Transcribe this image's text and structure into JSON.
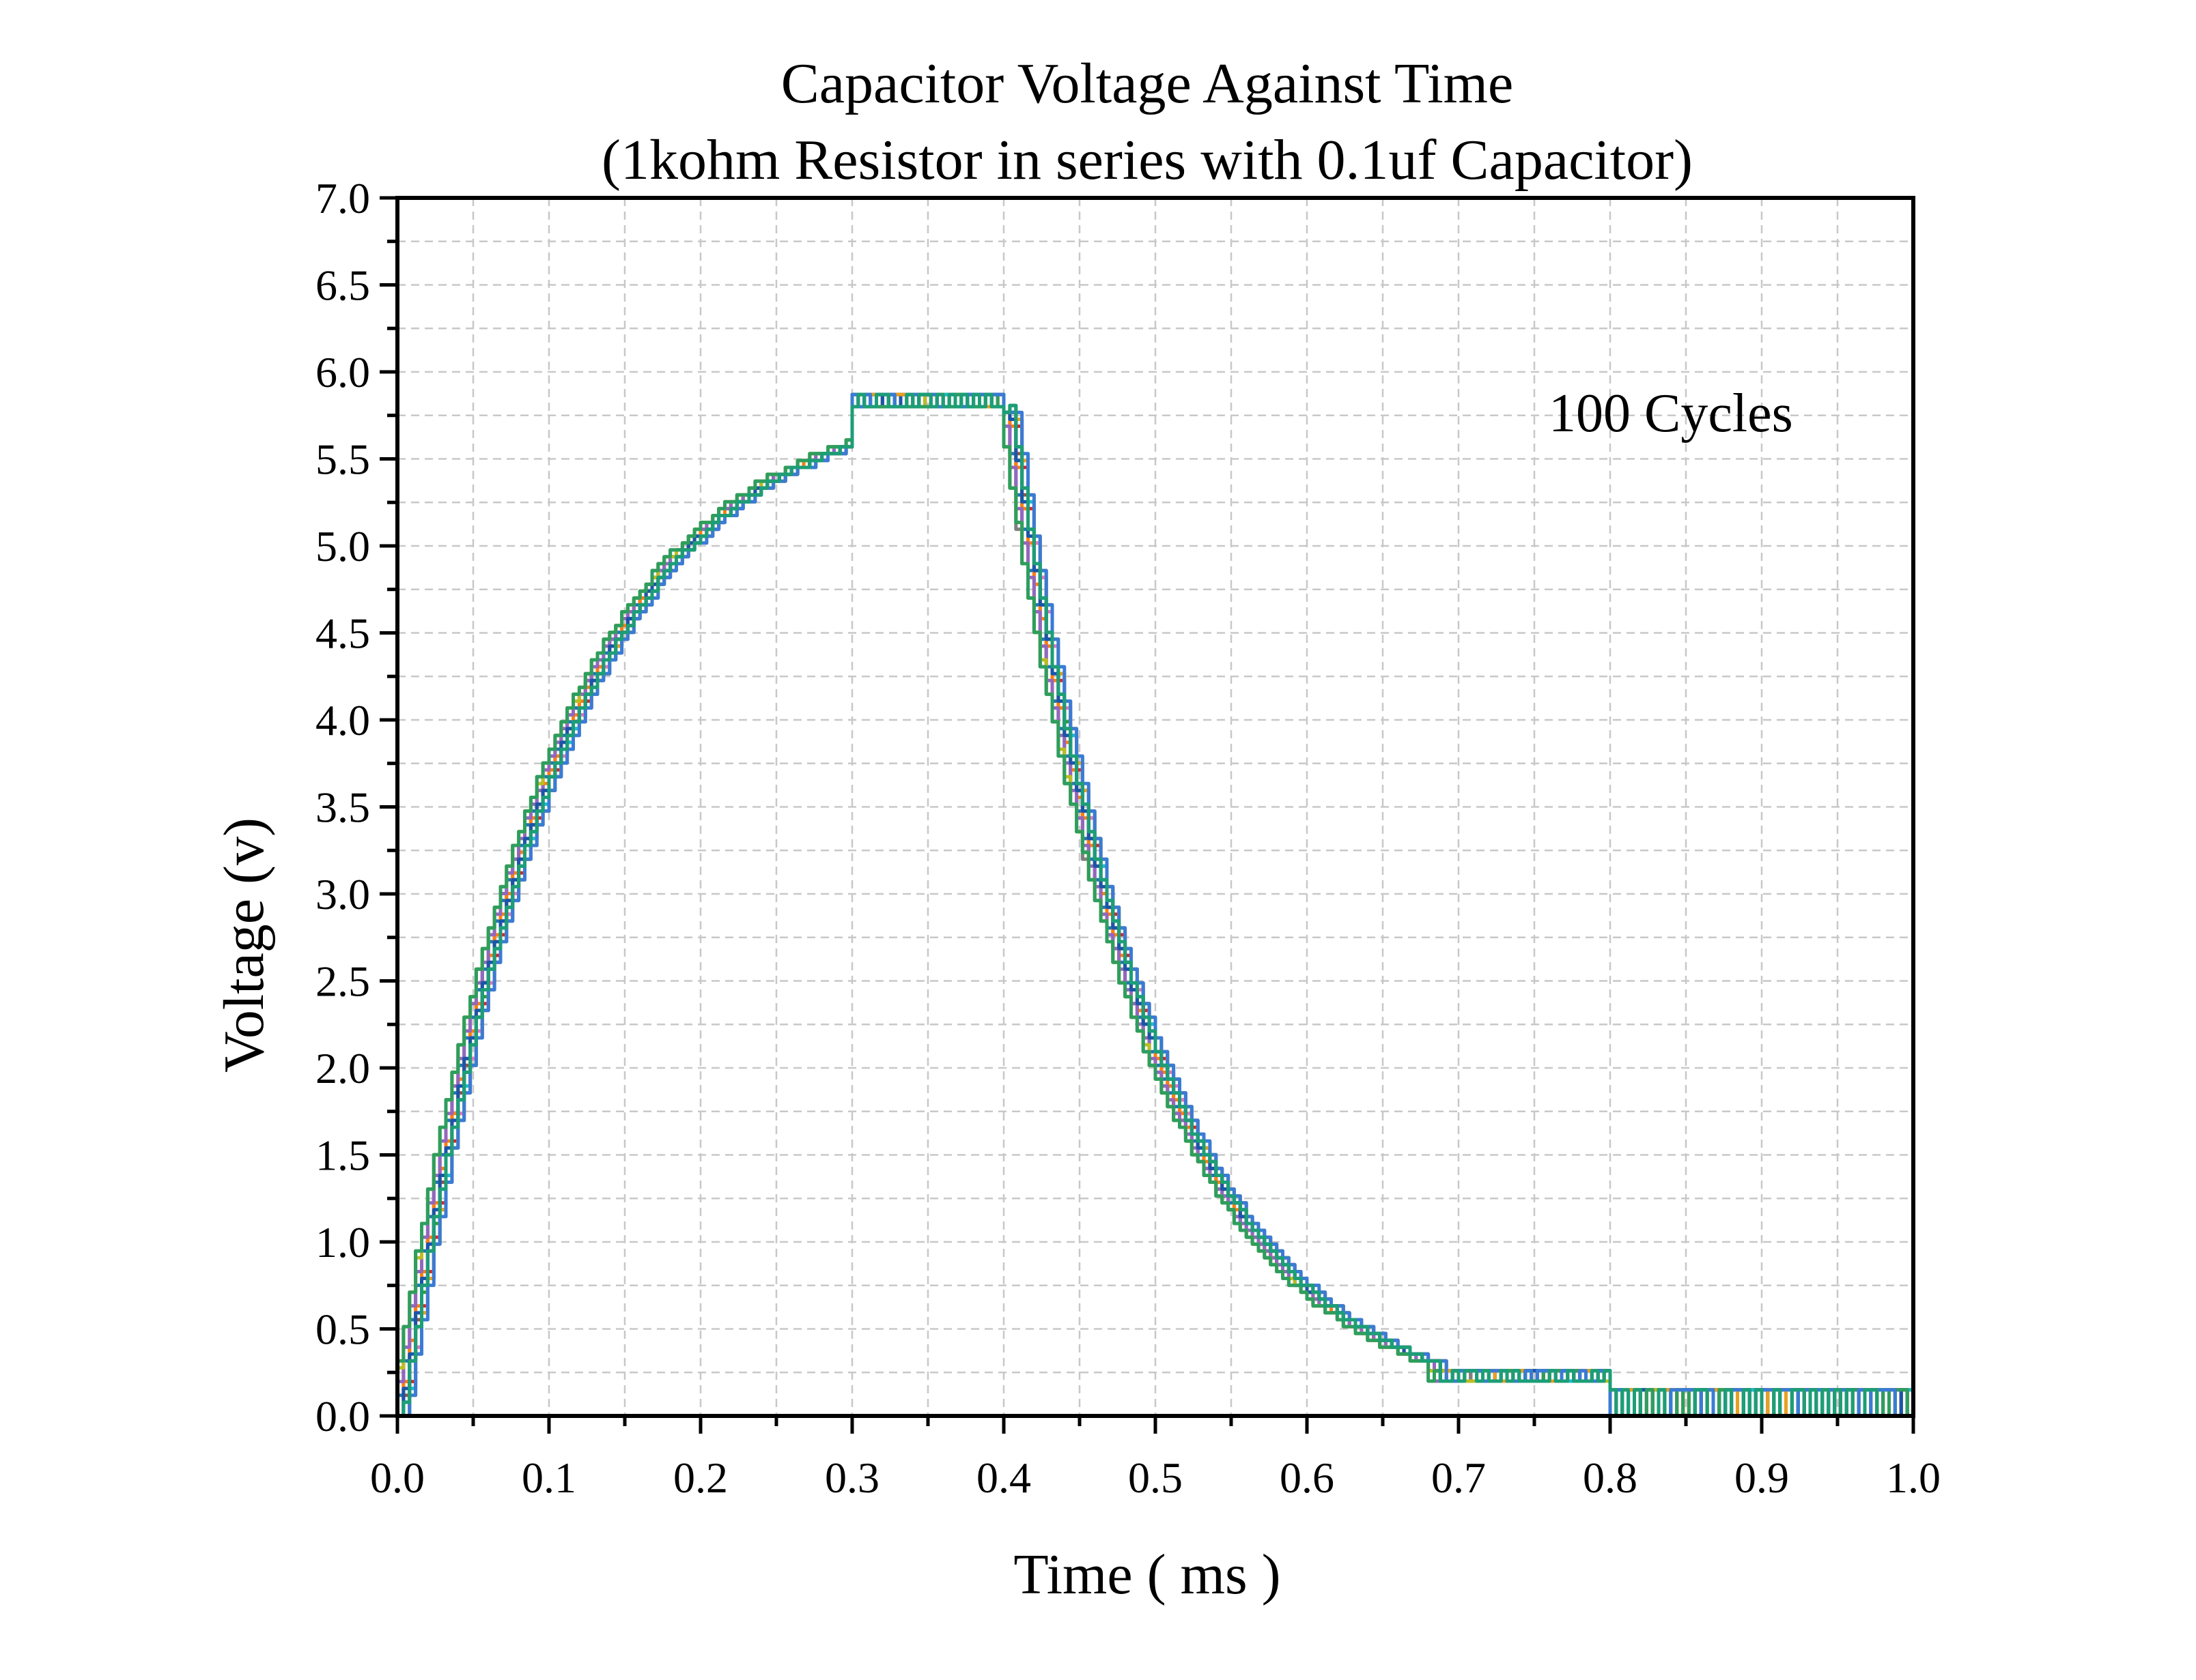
{
  "chart_data": {
    "type": "line",
    "title": [
      "Capacitor Voltage Against Time",
      "(1kohm Resistor in series with 0.1uf Capacitor)"
    ],
    "xlabel": "Time ( ms )",
    "ylabel": "Voltage (v)",
    "xlim": [
      0.0,
      1.0
    ],
    "ylim": [
      0.0,
      7.0
    ],
    "xticks": [
      "0.0",
      "0.1",
      "0.2",
      "0.3",
      "0.4",
      "0.5",
      "0.6",
      "0.7",
      "0.8",
      "0.9",
      "1.0"
    ],
    "yticks": [
      "0.0",
      "0.5",
      "1.0",
      "1.5",
      "2.0",
      "2.5",
      "3.0",
      "3.5",
      "4.0",
      "4.5",
      "5.0",
      "5.5",
      "6.0",
      "6.5",
      "7.0"
    ],
    "grid": true,
    "annotation": "100 Cycles",
    "model": {
      "charge_end_ms": 0.4,
      "plateau_v": 5.88,
      "time_constant_ms": 0.1,
      "discharge_floor_v": 0.2,
      "noise_floor_v": 0.15
    },
    "representative_points": [
      {
        "x": 0.0,
        "y": 0.0
      },
      {
        "x": 0.05,
        "y": 2.4
      },
      {
        "x": 0.1,
        "y": 4.1
      },
      {
        "x": 0.15,
        "y": 4.9
      },
      {
        "x": 0.2,
        "y": 5.4
      },
      {
        "x": 0.25,
        "y": 5.65
      },
      {
        "x": 0.3,
        "y": 5.8
      },
      {
        "x": 0.35,
        "y": 5.86
      },
      {
        "x": 0.4,
        "y": 5.88
      },
      {
        "x": 0.45,
        "y": 3.1
      },
      {
        "x": 0.5,
        "y": 1.8
      },
      {
        "x": 0.55,
        "y": 1.1
      },
      {
        "x": 0.6,
        "y": 0.75
      },
      {
        "x": 0.65,
        "y": 0.4
      },
      {
        "x": 0.7,
        "y": 0.3
      },
      {
        "x": 0.75,
        "y": 0.2
      },
      {
        "x": 0.8,
        "y": 0.08
      },
      {
        "x": 0.9,
        "y": 0.08
      },
      {
        "x": 1.0,
        "y": 0.08
      }
    ],
    "series_colors": [
      "#1f77b4",
      "#ff7f0e",
      "#2ca02c",
      "#d62728",
      "#9467bd",
      "#8c564b",
      "#e377c2",
      "#7f7f7f",
      "#bcbd22",
      "#17becf",
      "#1a55a8",
      "#e8a020",
      "#2e9e5e",
      "#3a7bd5",
      "#1c9e77"
    ]
  }
}
